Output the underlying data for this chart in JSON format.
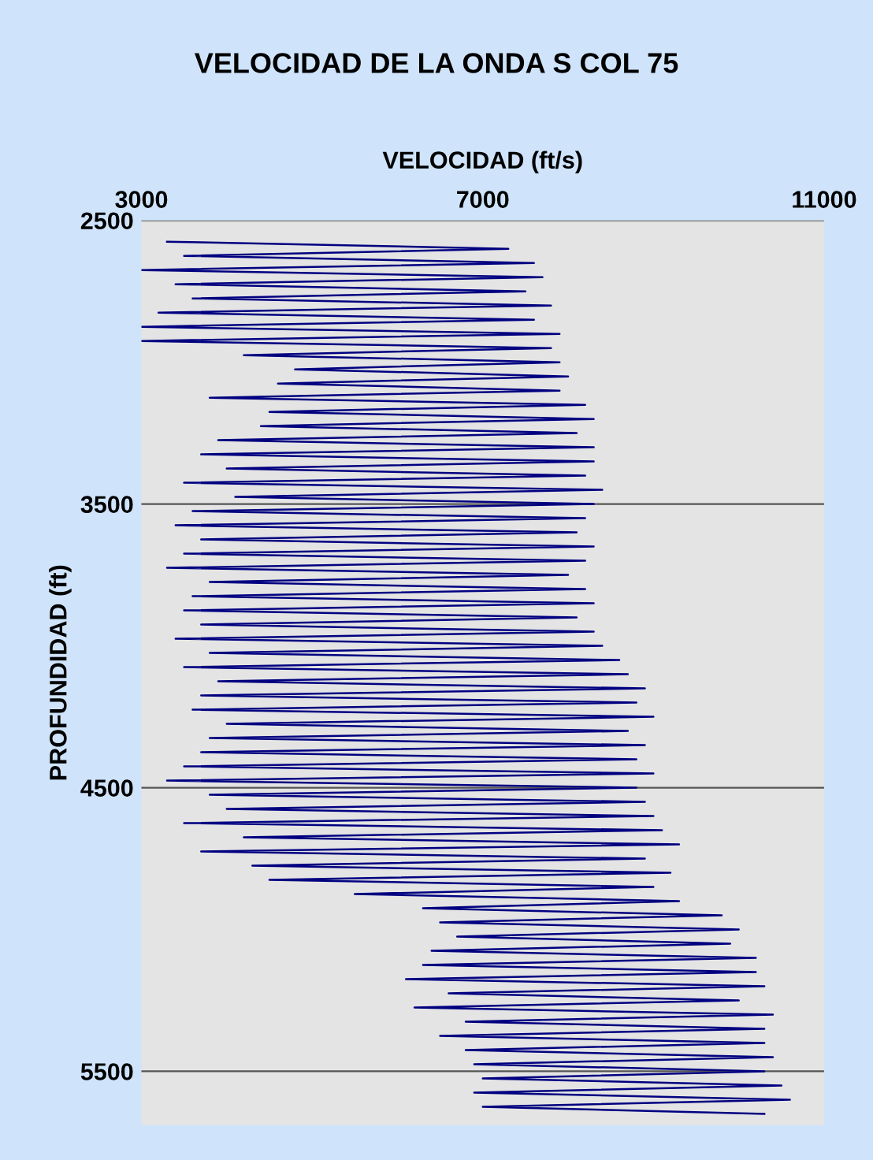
{
  "chart_data": {
    "type": "line",
    "title": "VELOCIDAD DE LA ONDA S COL 75",
    "xlabel": "VELOCIDAD (ft/s)",
    "ylabel": "PROFUNDIDAD (ft)",
    "xlim": [
      3000,
      11000
    ],
    "xticks": [
      3000,
      7000,
      11000
    ],
    "ylim": [
      5690,
      2500
    ],
    "yticks": [
      2500,
      3500,
      4500,
      5500
    ],
    "grid": "y",
    "legend": false,
    "marker": "none",
    "line_style": "solid",
    "series": [
      {
        "color": "#000080",
        "x": [
          3300,
          7300,
          3500,
          7600,
          3000,
          7700,
          3400,
          7500,
          3600,
          7800,
          3200,
          7600,
          3000,
          7900,
          3000,
          7800,
          4200,
          7900,
          4800,
          8000,
          4600,
          7900,
          3800,
          8200,
          4500,
          8300,
          4400,
          8100,
          3900,
          8300,
          3700,
          8300,
          4000,
          8200,
          3500,
          8400,
          4100,
          8300,
          3600,
          8200,
          3400,
          8100,
          3700,
          8300,
          3500,
          8200,
          3300,
          8000,
          3800,
          8200,
          3600,
          8300,
          3500,
          8100,
          3700,
          8300,
          3400,
          8400,
          3800,
          8600,
          3500,
          8700,
          3900,
          8900,
          3700,
          8800,
          3600,
          9000,
          4000,
          8700,
          3800,
          8900,
          3700,
          8800,
          3500,
          9000,
          3300,
          8800,
          3800,
          8900,
          4000,
          9000,
          3500,
          9100,
          4200,
          9300,
          3700,
          8900,
          4300,
          9200,
          4500,
          9000,
          5500,
          9300,
          6300,
          9800,
          6500,
          10000,
          6700,
          9900,
          6400,
          10200,
          6300,
          10200,
          6100,
          10300,
          6600,
          10000,
          6200,
          10400,
          6800,
          10300,
          6500,
          10300,
          6800,
          10400,
          6900,
          10300,
          7000,
          10500,
          6900,
          10600,
          7000,
          10300
        ],
        "values": [
          2575,
          2600,
          2625,
          2650,
          2675,
          2700,
          2725,
          2750,
          2775,
          2800,
          2825,
          2850,
          2875,
          2900,
          2925,
          2950,
          2975,
          3000,
          3025,
          3050,
          3075,
          3100,
          3125,
          3150,
          3175,
          3200,
          3225,
          3250,
          3275,
          3300,
          3325,
          3350,
          3375,
          3400,
          3425,
          3450,
          3475,
          3500,
          3525,
          3550,
          3575,
          3600,
          3625,
          3650,
          3675,
          3700,
          3725,
          3750,
          3775,
          3800,
          3825,
          3850,
          3875,
          3900,
          3925,
          3950,
          3975,
          4000,
          4025,
          4050,
          4075,
          4100,
          4125,
          4150,
          4175,
          4200,
          4225,
          4250,
          4275,
          4300,
          4325,
          4350,
          4375,
          4400,
          4425,
          4450,
          4475,
          4500,
          4525,
          4550,
          4575,
          4600,
          4625,
          4650,
          4675,
          4700,
          4725,
          4750,
          4775,
          4800,
          4825,
          4850,
          4875,
          4900,
          4925,
          4950,
          4975,
          5000,
          5025,
          5050,
          5075,
          5100,
          5125,
          5150,
          5175,
          5200,
          5225,
          5250,
          5275,
          5300,
          5325,
          5350,
          5375,
          5400,
          5425,
          5450,
          5475,
          5500,
          5525,
          5550,
          5575,
          5600,
          5625,
          5650
        ]
      }
    ]
  }
}
